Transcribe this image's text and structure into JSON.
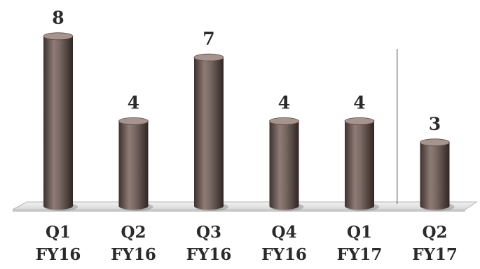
{
  "chart_data": {
    "type": "bar",
    "categories": [
      [
        "Q1",
        "FY16"
      ],
      [
        "Q2",
        "FY16"
      ],
      [
        "Q3",
        "FY16"
      ],
      [
        "Q4",
        "FY16"
      ],
      [
        "Q1",
        "FY17"
      ],
      [
        "Q2",
        "FY17"
      ]
    ],
    "values": [
      8,
      4,
      7,
      4,
      4,
      3
    ],
    "title": "",
    "xlabel": "",
    "ylabel": "",
    "ylim": [
      0,
      8
    ],
    "grid": false,
    "legend": "none",
    "bar_style": "3d-cylinder",
    "divider_after_index": 4,
    "colors": {
      "bar": "#6b5a55",
      "bar_dark": "#3e322f",
      "bar_light": "#a8948e",
      "floor": "#e4e4e4",
      "divider": "#7a7a7a",
      "text": "#2a2a2a"
    }
  }
}
